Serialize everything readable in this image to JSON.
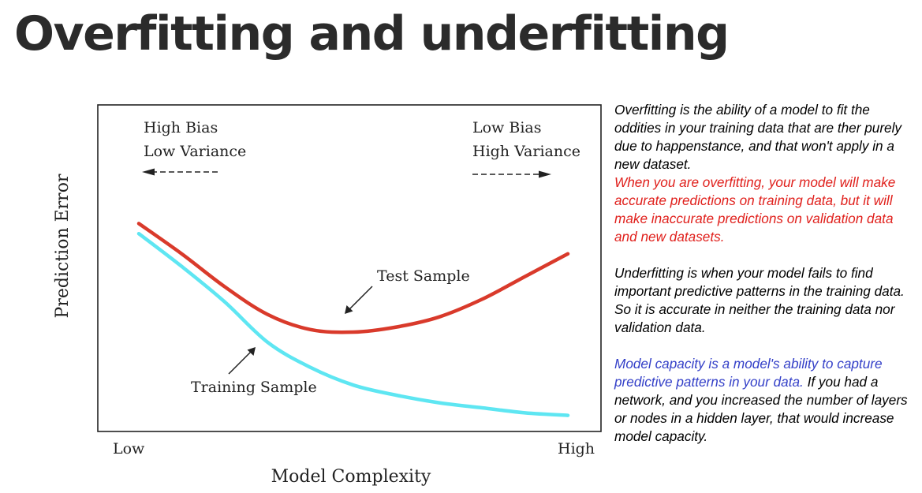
{
  "title": "Overfitting and underfitting",
  "chart_data": {
    "type": "line",
    "xlabel": "Model Complexity",
    "ylabel": "Prediction Error",
    "x_tick_labels": [
      "Low",
      "High"
    ],
    "annotations": {
      "left_top": "High Bias",
      "left_bottom": "Low Variance",
      "right_top": "Low Bias",
      "right_bottom": "High Variance",
      "test_label": "Test Sample",
      "training_label": "Training Sample"
    },
    "x": [
      0,
      0.1,
      0.2,
      0.3,
      0.4,
      0.5,
      0.6,
      0.7,
      0.8,
      0.9,
      1.0
    ],
    "series": [
      {
        "name": "Test Sample",
        "color": "#d93a2b",
        "values": [
          0.78,
          0.66,
          0.53,
          0.42,
          0.36,
          0.35,
          0.37,
          0.41,
          0.48,
          0.57,
          0.66
        ]
      },
      {
        "name": "Training Sample",
        "color": "#5ee6f2",
        "values": [
          0.74,
          0.61,
          0.47,
          0.31,
          0.21,
          0.14,
          0.1,
          0.07,
          0.05,
          0.03,
          0.02
        ]
      }
    ],
    "xlim": [
      0,
      1
    ],
    "ylim": [
      0,
      1
    ],
    "grid": false
  },
  "description": {
    "overfit_def": "Overfitting is the ability of a model to fit the oddities in your training data that are ther purely due to happenstance, and that won't apply in a new dataset.",
    "overfit_effect": "When you are overfitting, your model will make accurate predictions on training data, but it will make inaccurate predictions on validation data and new datasets.",
    "underfit_def": "Underfitting is when your model fails to find important predictive patterns in the training data. So it is accurate in neither the training data nor validation data.",
    "capacity_def": "Model capacity is a model's ability to capture predictive patterns in your data.",
    "capacity_example": "If you had a network, and you increased the number of layers or nodes in a hidden layer, that would increase model capacity."
  },
  "colors": {
    "test": "#d93a2b",
    "training": "#5ee6f2",
    "highlight_red": "#e0201c",
    "highlight_blue": "#3440c8"
  }
}
